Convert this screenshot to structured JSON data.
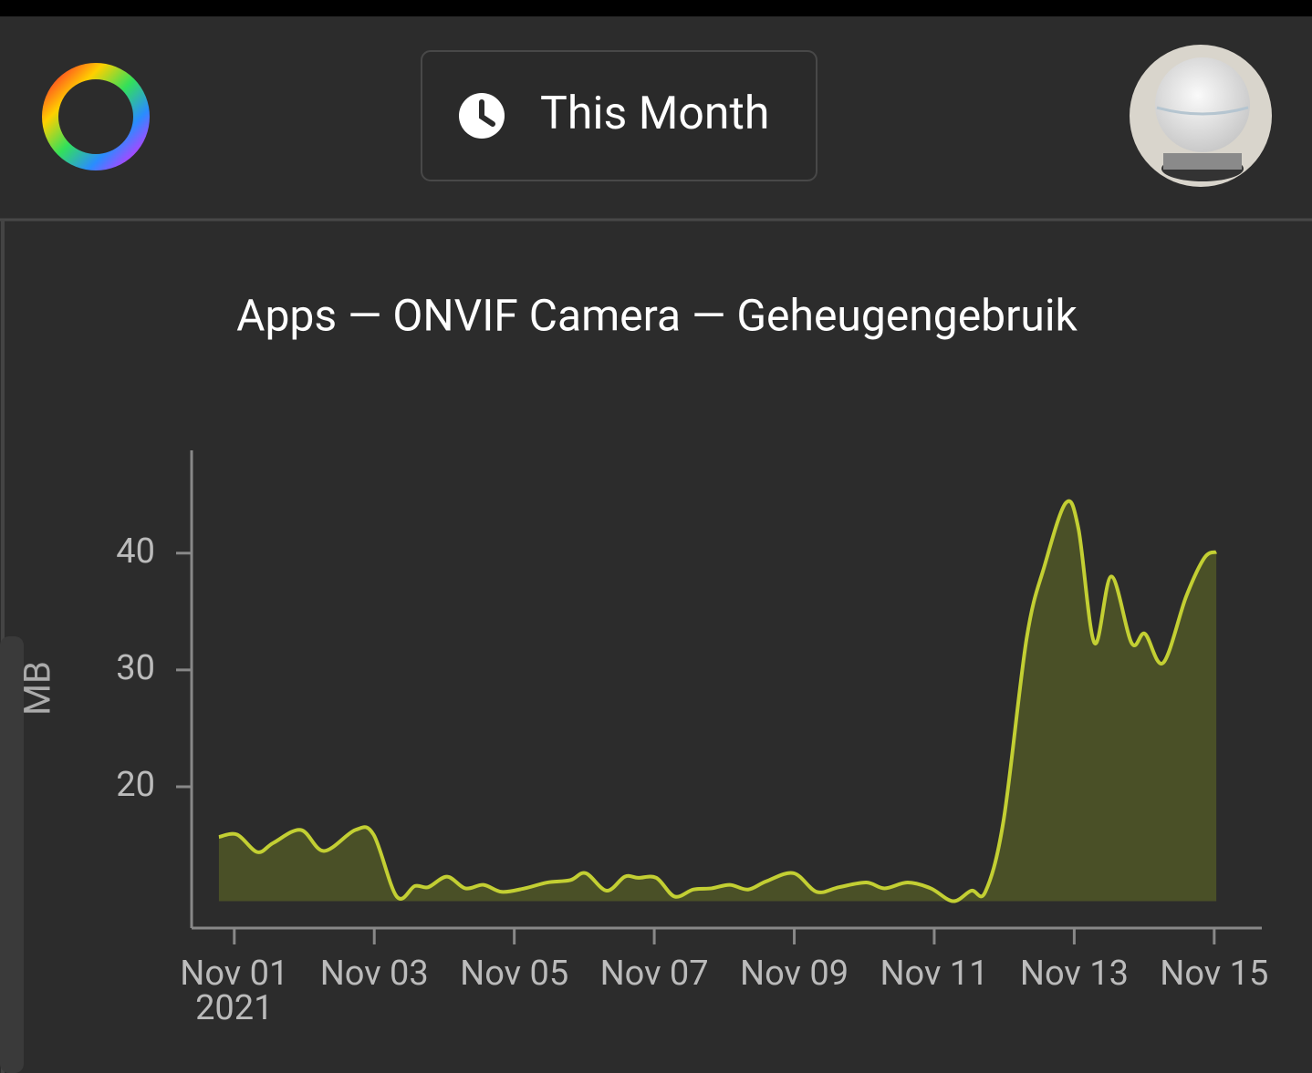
{
  "header": {
    "button_label": "This Month"
  },
  "chart_data": {
    "type": "area",
    "title": "Apps — ONVIF Camera — Geheugengebruik",
    "y_label": "MB",
    "x_year_label": "2021",
    "x": [
      0.78,
      1.04,
      1.33,
      1.56,
      1.95,
      2.28,
      2.73,
      2.99,
      3.32,
      3.58,
      3.77,
      4.04,
      4.3,
      4.56,
      4.82,
      5.15,
      5.47,
      5.8,
      6.02,
      6.32,
      6.58,
      6.77,
      7.03,
      7.29,
      7.56,
      7.82,
      8.08,
      8.34,
      8.6,
      8.99,
      9.32,
      9.64,
      10.03,
      10.29,
      10.62,
      10.95,
      11.27,
      11.53,
      11.73,
      11.99,
      12.32,
      12.58,
      12.88,
      13.06,
      13.29,
      13.53,
      13.82,
      14.01,
      14.27,
      14.6,
      14.86,
      15.03
    ],
    "series": [
      {
        "name": "MB",
        "color": "#c3cf33",
        "fill": "#4a5027",
        "values": [
          15.7,
          15.9,
          14.4,
          15.2,
          16.3,
          14.5,
          16.3,
          15.9,
          10.6,
          11.5,
          11.4,
          12.3,
          11.3,
          11.6,
          11.0,
          11.3,
          11.8,
          12.0,
          12.6,
          11.1,
          12.3,
          12.2,
          12.2,
          10.6,
          11.2,
          11.3,
          11.6,
          11.2,
          11.9,
          12.6,
          11.0,
          11.4,
          11.8,
          11.3,
          11.8,
          11.3,
          10.2,
          11.1,
          11.0,
          17.1,
          32.7,
          39.0,
          44.3,
          42.1,
          32.3,
          38.0,
          32.3,
          33.1,
          30.6,
          36.3,
          39.6,
          40.1
        ]
      }
    ],
    "xlim": [
      0.39,
      15.68
    ],
    "xticks": [
      {
        "value": 1,
        "label": "Nov 01"
      },
      {
        "value": 3,
        "label": "Nov 03"
      },
      {
        "value": 5,
        "label": "Nov 05"
      },
      {
        "value": 7,
        "label": "Nov 07"
      },
      {
        "value": 9,
        "label": "Nov 09"
      },
      {
        "value": 11,
        "label": "Nov 11"
      },
      {
        "value": 13,
        "label": "Nov 13"
      },
      {
        "value": 15,
        "label": "Nov 15"
      }
    ],
    "ylim": [
      7.9,
      48.8
    ],
    "yticks": [
      20,
      30,
      40
    ],
    "grid": false
  }
}
